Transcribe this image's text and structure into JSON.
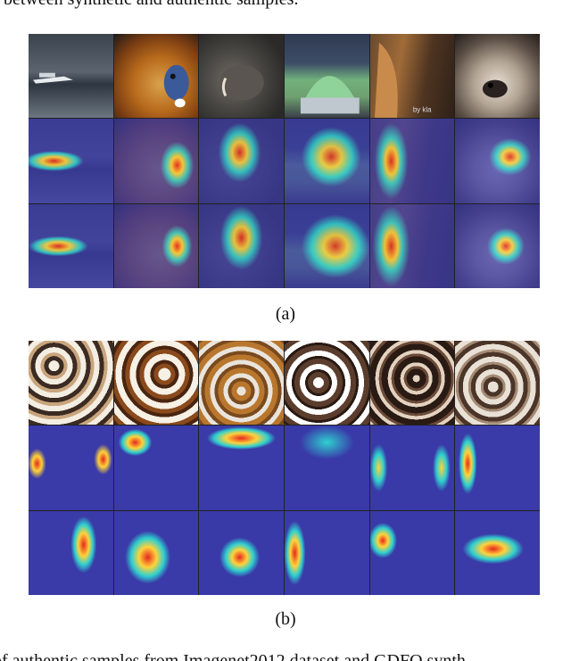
{
  "text": {
    "top_partial": "between synthetic and authentic samples.",
    "bottom_partial": "of authentic samples from Imagenet2012 dataset and GDFQ synth",
    "caption_a": "(a)",
    "caption_b": "(b)",
    "watermark": "by kla"
  },
  "figure": {
    "panel_a": {
      "rows": 3,
      "cols": 6,
      "row_labels_visible": false,
      "content": "Authentic ImageNet samples (top row) with Grad-CAM heatmaps (rows 2-3)"
    },
    "panel_b": {
      "rows": 3,
      "cols": 6,
      "content": "GDFQ synthetic samples (top row) with Grad-CAM heatmaps (rows 2-3)"
    }
  },
  "colors": {
    "heat_low": "#3a3aa8",
    "heat_mid": "#2fd0d0",
    "heat_high": "#ffd23a",
    "heat_peak": "#e6281e"
  }
}
